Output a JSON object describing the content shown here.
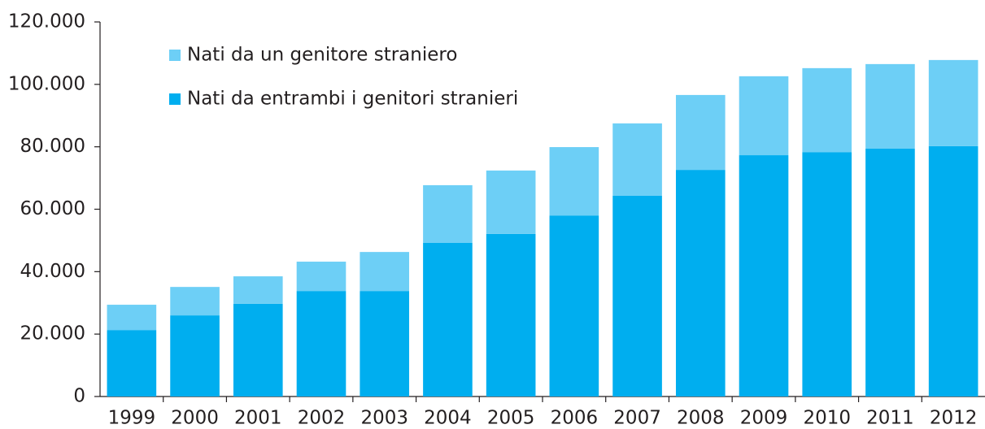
{
  "chart_data": {
    "type": "stacked-bar",
    "categories": [
      "1999",
      "2000",
      "2001",
      "2002",
      "2003",
      "2004",
      "2005",
      "2006",
      "2007",
      "2008",
      "2009",
      "2010",
      "2011",
      "2012"
    ],
    "series": [
      {
        "name": "Nati da entrambi i genitori stranieri",
        "color": "#00aeef",
        "values": [
          21300,
          26000,
          29700,
          33800,
          33800,
          49200,
          52100,
          58000,
          64300,
          72600,
          77300,
          78300,
          79400,
          80200
        ]
      },
      {
        "name": "Nati da un genitore straniero",
        "color": "#6dcff6",
        "values": [
          8100,
          9100,
          8800,
          9400,
          12500,
          18500,
          20300,
          21900,
          23200,
          24000,
          25300,
          26900,
          27100,
          27600
        ]
      }
    ],
    "ylim": [
      0,
      120000
    ],
    "yticks": [
      0,
      {
        "value": 20000,
        "label": "20.000"
      },
      {
        "value": 40000,
        "label": "40.000"
      },
      {
        "value": 60000,
        "label": "60.000"
      },
      {
        "value": 80000,
        "label": "80.000"
      },
      {
        "value": 100000,
        "label": "100.000"
      },
      {
        "value": 120000,
        "label": "120.000"
      }
    ],
    "grid": false
  }
}
